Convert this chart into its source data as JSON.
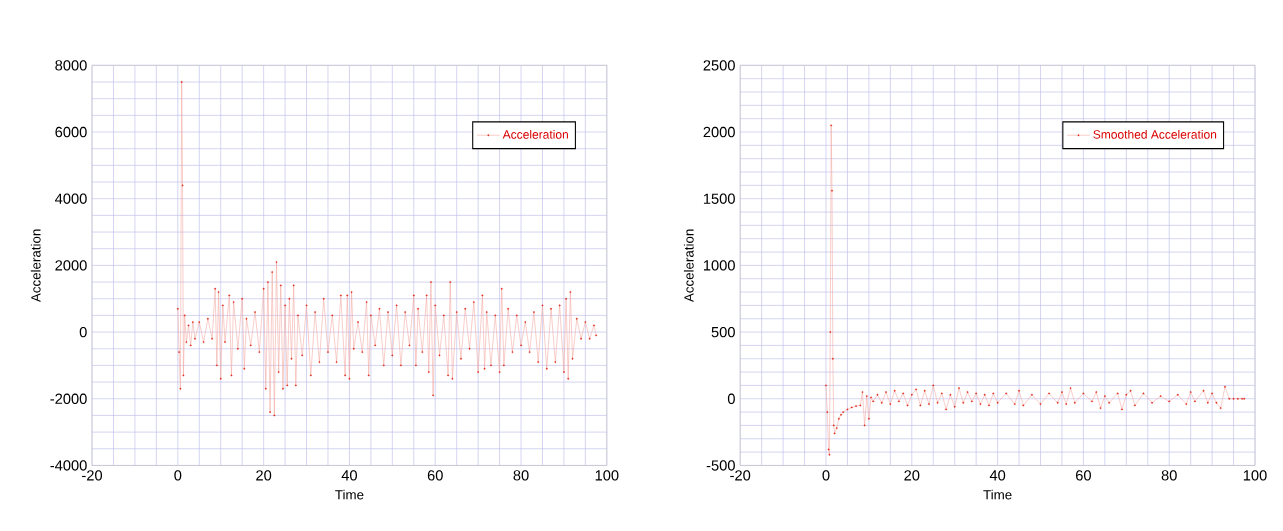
{
  "chart_data": [
    {
      "type": "line",
      "xlabel": "Time",
      "ylabel": "Acceleration",
      "xlim": [
        -20,
        100
      ],
      "ylim": [
        -4000,
        8000
      ],
      "xticks": [
        -20,
        0,
        20,
        40,
        60,
        80,
        100
      ],
      "yticks": [
        -4000,
        -2000,
        0,
        2000,
        4000,
        6000,
        8000
      ],
      "grid": true,
      "legend": "top right",
      "marker": "circle",
      "line_style": "solid",
      "series": [
        {
          "name": "Acceleration",
          "color": "#e0301e",
          "x": [
            0,
            0.3,
            0.6,
            0.9,
            1.1,
            1.3,
            1.6,
            2,
            2.5,
            3,
            3.5,
            4,
            5,
            6,
            7,
            8,
            8.7,
            9.1,
            9.5,
            10,
            10.5,
            11,
            12,
            12.5,
            13,
            14,
            15,
            15.5,
            16,
            17,
            18,
            19,
            20,
            20.5,
            21,
            21.5,
            22,
            22.5,
            23,
            23.5,
            24,
            24.5,
            25,
            25.5,
            26,
            26.5,
            27,
            27.5,
            28,
            29,
            30,
            31,
            32,
            33,
            34,
            35,
            36,
            37,
            38,
            39,
            39.5,
            40,
            40.5,
            41,
            42,
            43,
            44,
            44.5,
            45,
            46,
            47,
            48,
            49,
            50,
            51,
            52,
            53,
            54,
            55,
            55.5,
            56,
            57,
            58,
            58.5,
            59,
            59.5,
            60,
            61,
            62,
            63,
            63.5,
            64,
            65,
            66,
            67,
            68,
            69,
            70,
            71,
            71.5,
            72,
            73,
            74,
            75,
            75.5,
            76,
            77,
            78,
            79,
            80,
            81,
            82,
            83,
            84,
            85,
            86,
            87,
            88,
            89,
            90,
            90.5,
            91,
            91.5,
            92,
            93,
            94,
            95,
            96,
            97,
            97.5
          ],
          "values": [
            700,
            -600,
            -1700,
            7500,
            4400,
            -1300,
            500,
            -300,
            200,
            -400,
            300,
            -200,
            300,
            -300,
            400,
            -200,
            1300,
            -1000,
            1200,
            -1400,
            800,
            -300,
            1100,
            -1300,
            900,
            -500,
            1000,
            -1100,
            400,
            -400,
            600,
            -600,
            1300,
            -1700,
            1500,
            -2400,
            1800,
            -2500,
            2100,
            -1200,
            1400,
            -1700,
            800,
            -1600,
            1000,
            -800,
            1400,
            -1600,
            500,
            -700,
            800,
            -1300,
            600,
            -900,
            1000,
            -600,
            500,
            -900,
            1100,
            -1300,
            1100,
            -1400,
            1200,
            -500,
            300,
            -600,
            900,
            -1300,
            500,
            -400,
            700,
            -1000,
            600,
            -700,
            800,
            -1000,
            600,
            -400,
            1100,
            -1000,
            700,
            -600,
            1100,
            -1200,
            1500,
            -1900,
            800,
            -700,
            500,
            -1300,
            1500,
            -1400,
            600,
            -800,
            700,
            -500,
            900,
            -1200,
            1100,
            -1100,
            600,
            -1000,
            500,
            -1200,
            1300,
            -1000,
            700,
            -600,
            500,
            -400,
            300,
            -600,
            600,
            -900,
            800,
            -1100,
            700,
            -900,
            800,
            -1200,
            1000,
            -1400,
            1200,
            -800,
            400,
            -200,
            300,
            -200,
            200,
            -100
          ]
        }
      ]
    },
    {
      "type": "line",
      "xlabel": "Time",
      "ylabel": "Acceleration",
      "xlim": [
        -20,
        100
      ],
      "ylim": [
        -500,
        2500
      ],
      "xticks": [
        -20,
        0,
        20,
        40,
        60,
        80,
        100
      ],
      "yticks": [
        -500,
        0,
        500,
        1000,
        1500,
        2000,
        2500
      ],
      "grid": true,
      "legend": "top right",
      "marker": "circle",
      "line_style": "solid",
      "series": [
        {
          "name": "Smoothed Acceleration",
          "color": "#e0301e",
          "x": [
            0,
            0.3,
            0.6,
            0.8,
            1.0,
            1.2,
            1.4,
            1.6,
            1.8,
            2,
            2.5,
            3,
            3.5,
            4,
            5,
            6,
            7,
            8,
            8.5,
            9,
            9.5,
            10,
            10.5,
            11,
            12,
            13,
            14,
            15,
            16,
            17,
            18,
            19,
            20,
            21,
            22,
            23,
            24,
            25,
            26,
            27,
            28,
            29,
            30,
            31,
            32,
            33,
            34,
            35,
            36,
            37,
            38,
            39,
            40,
            42,
            44,
            45,
            46,
            48,
            50,
            52,
            54,
            55,
            56,
            57,
            58,
            60,
            62,
            63,
            64,
            65,
            66,
            68,
            69,
            70,
            71,
            72,
            74,
            76,
            78,
            80,
            82,
            84,
            85,
            86,
            88,
            89,
            90,
            91,
            92,
            93,
            94,
            95,
            96,
            97,
            97.5
          ],
          "values": [
            100,
            -100,
            -380,
            -420,
            500,
            2050,
            1560,
            300,
            -200,
            -260,
            -220,
            -150,
            -120,
            -100,
            -80,
            -65,
            -55,
            -50,
            50,
            -200,
            20,
            -150,
            10,
            -20,
            30,
            -30,
            50,
            -40,
            60,
            -20,
            40,
            -50,
            30,
            70,
            -50,
            60,
            -40,
            100,
            -30,
            40,
            -80,
            30,
            -60,
            80,
            -30,
            50,
            -20,
            40,
            -40,
            30,
            -50,
            40,
            -30,
            40,
            -40,
            60,
            -50,
            30,
            -40,
            40,
            -30,
            50,
            -40,
            80,
            -30,
            40,
            -20,
            50,
            -70,
            20,
            -30,
            40,
            -80,
            30,
            60,
            -50,
            40,
            -30,
            20,
            -20,
            30,
            -40,
            50,
            -20,
            60,
            -30,
            40,
            -30,
            -70,
            90,
            0,
            0,
            0,
            0,
            0
          ]
        }
      ]
    }
  ]
}
